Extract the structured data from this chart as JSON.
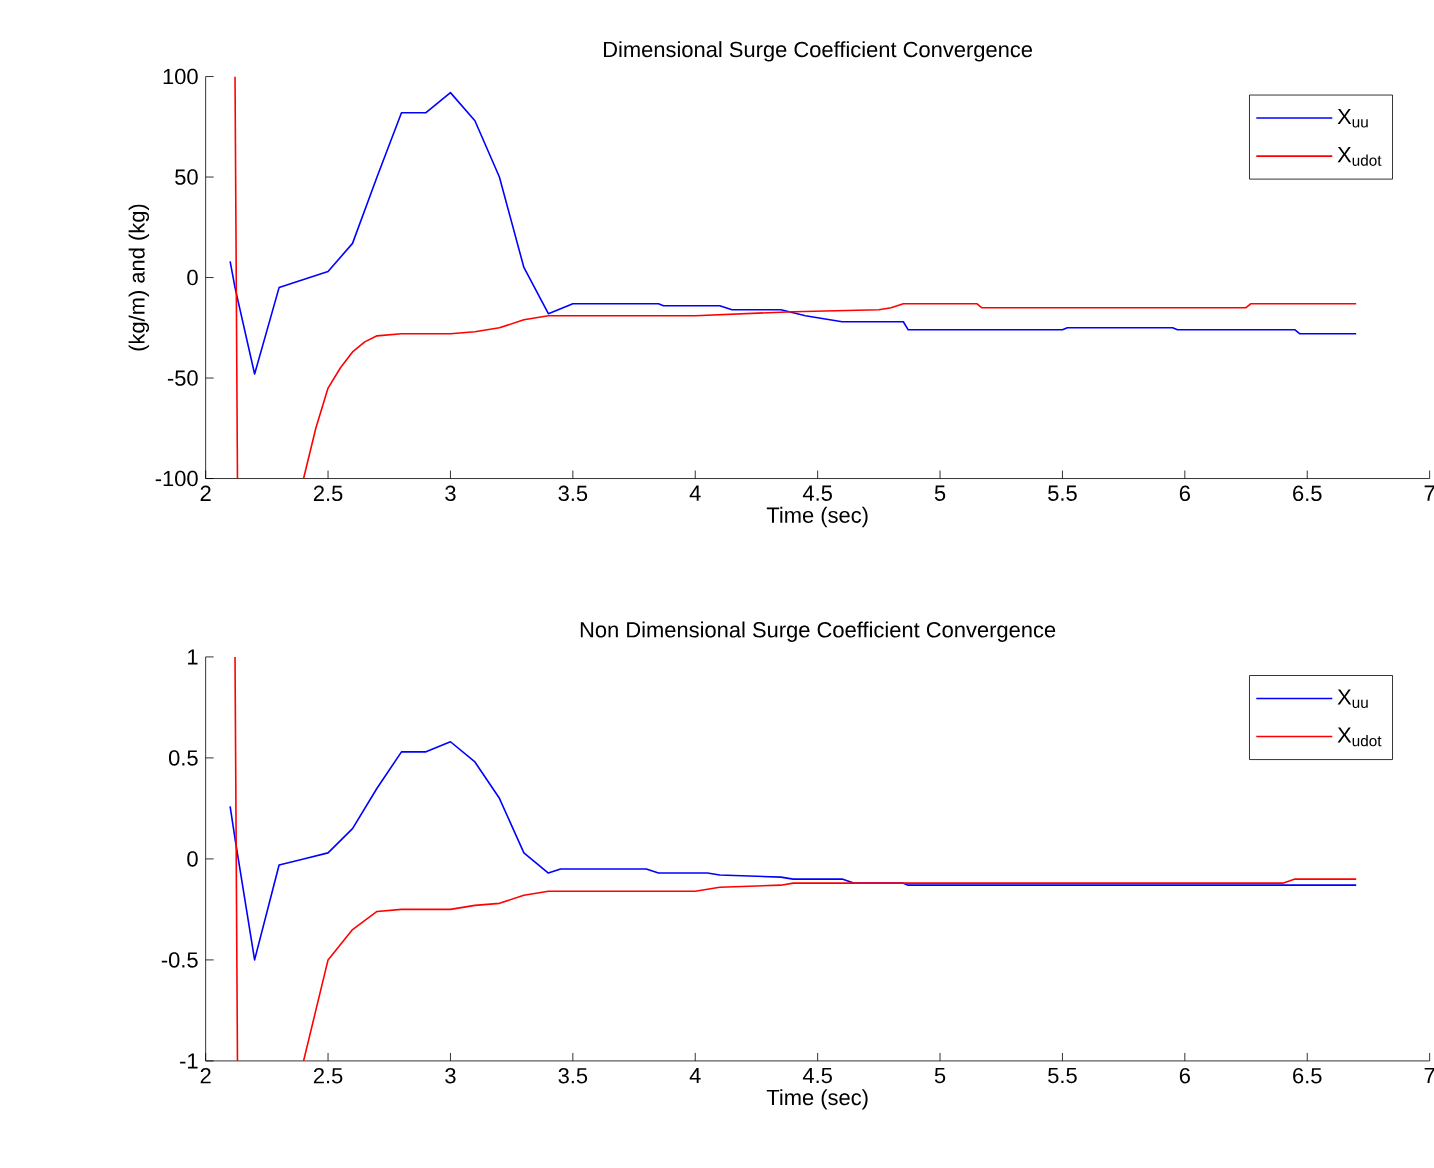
{
  "chart_data": [
    {
      "type": "line",
      "title": "Dimensional Surge Coefficient Convergence",
      "xlabel": "Time (sec)",
      "ylabel": "(kg/m) and (kg)",
      "xlim": [
        2,
        7
      ],
      "ylim": [
        -100,
        100
      ],
      "xticks": [
        2,
        2.5,
        3,
        3.5,
        4,
        4.5,
        5,
        5.5,
        6,
        6.5,
        7
      ],
      "yticks": [
        -100,
        -50,
        0,
        50,
        100
      ],
      "legend": "top right",
      "grid": false,
      "series": [
        {
          "name": "X$_{uu}$",
          "color": "#0000ff",
          "x": [
            2.1,
            2.12,
            2.2,
            2.3,
            2.4,
            2.5,
            2.6,
            2.7,
            2.8,
            2.9,
            3.0,
            3.1,
            3.2,
            3.3,
            3.4,
            3.5,
            3.85,
            3.87,
            4.1,
            4.15,
            4.35,
            4.45,
            4.6,
            4.85,
            4.87,
            5.5,
            5.52,
            5.95,
            5.97,
            6.45,
            6.47,
            6.7
          ],
          "values": [
            8,
            -5,
            -48,
            -5,
            -1,
            3,
            17,
            50,
            82,
            82,
            92,
            78,
            50,
            5,
            -18,
            -13,
            -13,
            -14,
            -14,
            -16,
            -16,
            -19,
            -22,
            -22,
            -26,
            -26,
            -25,
            -25,
            -26,
            -26,
            -28,
            -28
          ]
        },
        {
          "name": "X$_{udot}$",
          "color": "#ff0000",
          "x": [
            2.12,
            2.13,
            2.25,
            2.4,
            2.45,
            2.5,
            2.55,
            2.6,
            2.65,
            2.7,
            2.8,
            3.0,
            3.1,
            3.2,
            3.3,
            3.4,
            4.0,
            4.4,
            4.75,
            4.8,
            4.85,
            5.15,
            5.17,
            6.25,
            6.27,
            6.7
          ],
          "values": [
            100,
            -100,
            null,
            -100,
            -75,
            -55,
            -45,
            -37,
            -32,
            -29,
            -28,
            -28,
            -27,
            -25,
            -21,
            -19,
            -19,
            -17,
            -16,
            -15,
            -13,
            -13,
            -15,
            -15,
            -13,
            -13
          ]
        }
      ]
    },
    {
      "type": "line",
      "title": "Non Dimensional Surge Coefficient Convergence",
      "xlabel": "Time (sec)",
      "xlim": [
        2,
        7
      ],
      "ylim": [
        -1,
        1
      ],
      "xticks": [
        2,
        2.5,
        3,
        3.5,
        4,
        4.5,
        5,
        5.5,
        6,
        6.5,
        7
      ],
      "yticks": [
        -1,
        -0.5,
        0,
        0.5,
        1
      ],
      "legend": "top right",
      "grid": false,
      "series": [
        {
          "name": "X$_{uu}$",
          "color": "#0000ff",
          "x": [
            2.1,
            2.12,
            2.2,
            2.3,
            2.4,
            2.5,
            2.6,
            2.7,
            2.8,
            2.9,
            3.0,
            3.1,
            3.2,
            3.3,
            3.4,
            3.45,
            3.8,
            3.85,
            4.05,
            4.1,
            4.35,
            4.4,
            4.6,
            4.65,
            4.85,
            4.87,
            6.7
          ],
          "values": [
            0.26,
            0.1,
            -0.5,
            -0.03,
            0,
            0.03,
            0.15,
            0.35,
            0.53,
            0.53,
            0.58,
            0.48,
            0.3,
            0.03,
            -0.07,
            -0.05,
            -0.05,
            -0.07,
            -0.07,
            -0.08,
            -0.09,
            -0.1,
            -0.1,
            -0.12,
            -0.12,
            -0.13,
            -0.13
          ]
        },
        {
          "name": "X$_{udot}$",
          "color": "#ff0000",
          "x": [
            2.12,
            2.13,
            2.25,
            2.4,
            2.45,
            2.5,
            2.6,
            2.7,
            2.8,
            3.0,
            3.1,
            3.2,
            3.3,
            3.4,
            4.0,
            4.1,
            4.35,
            4.4,
            6.4,
            6.45,
            6.7
          ],
          "values": [
            1,
            -1,
            null,
            -1,
            -0.75,
            -0.5,
            -0.35,
            -0.26,
            -0.25,
            -0.25,
            -0.23,
            -0.22,
            -0.18,
            -0.16,
            -0.16,
            -0.14,
            -0.13,
            -0.12,
            -0.12,
            -0.1,
            -0.1
          ]
        }
      ]
    }
  ]
}
